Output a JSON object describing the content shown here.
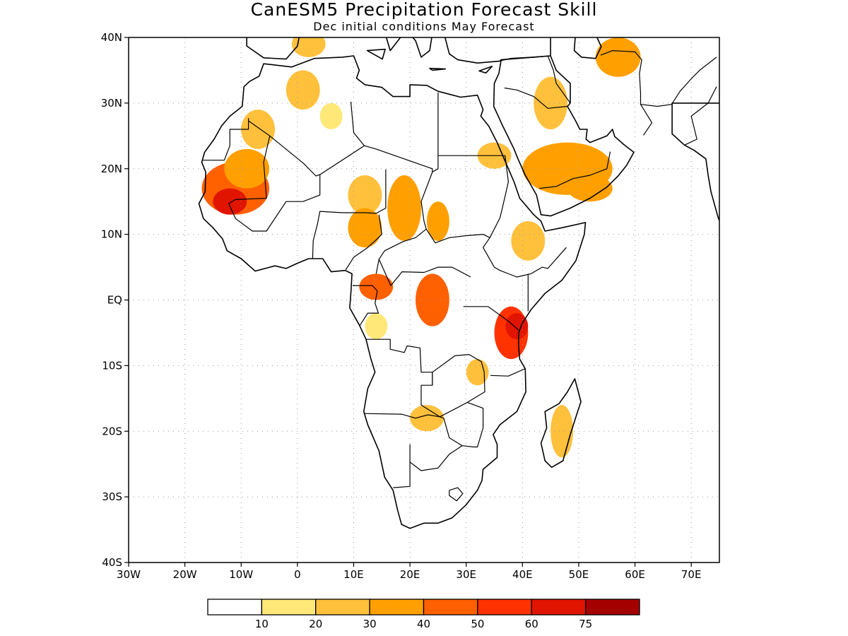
{
  "title": "CanESM5 Precipitation Forecast Skill",
  "subtitle": "Dec initial conditions  May Forecast",
  "map": {
    "lon_range": [
      -30,
      75
    ],
    "lat_range": [
      -40,
      40
    ],
    "lat_ticks": [
      {
        "value": 40,
        "label": "40N"
      },
      {
        "value": 30,
        "label": "30N"
      },
      {
        "value": 20,
        "label": "20N"
      },
      {
        "value": 10,
        "label": "10N"
      },
      {
        "value": 0,
        "label": "EQ"
      },
      {
        "value": -10,
        "label": "10S"
      },
      {
        "value": -20,
        "label": "20S"
      },
      {
        "value": -30,
        "label": "30S"
      },
      {
        "value": -40,
        "label": "40S"
      }
    ],
    "lon_ticks": [
      {
        "value": -30,
        "label": "30W"
      },
      {
        "value": -20,
        "label": "20W"
      },
      {
        "value": -10,
        "label": "10W"
      },
      {
        "value": 0,
        "label": "0"
      },
      {
        "value": 10,
        "label": "10E"
      },
      {
        "value": 20,
        "label": "20E"
      },
      {
        "value": 30,
        "label": "30E"
      },
      {
        "value": 40,
        "label": "40E"
      },
      {
        "value": 50,
        "label": "50E"
      },
      {
        "value": 60,
        "label": "60E"
      },
      {
        "value": 70,
        "label": "70E"
      }
    ],
    "grid": true,
    "skill_areas": [
      {
        "lon": -11,
        "lat": 17,
        "level": 4,
        "rx": 6,
        "ry": 4
      },
      {
        "lon": -12,
        "lat": 15,
        "level": 6,
        "rx": 3,
        "ry": 2
      },
      {
        "lon": -9,
        "lat": 20,
        "level": 3,
        "rx": 4,
        "ry": 3
      },
      {
        "lon": -7,
        "lat": 26,
        "level": 2,
        "rx": 3,
        "ry": 3
      },
      {
        "lon": 1,
        "lat": 32,
        "level": 2,
        "rx": 3,
        "ry": 3
      },
      {
        "lon": 6,
        "lat": 28,
        "level": 1,
        "rx": 2,
        "ry": 2
      },
      {
        "lon": 12,
        "lat": 16,
        "level": 2,
        "rx": 3,
        "ry": 3
      },
      {
        "lon": 19,
        "lat": 14,
        "level": 3,
        "rx": 3,
        "ry": 5
      },
      {
        "lon": 12,
        "lat": 11,
        "level": 3,
        "rx": 3,
        "ry": 3
      },
      {
        "lon": 25,
        "lat": 12,
        "level": 3,
        "rx": 2,
        "ry": 3
      },
      {
        "lon": 14,
        "lat": 2,
        "level": 4,
        "rx": 3,
        "ry": 2
      },
      {
        "lon": 24,
        "lat": 0,
        "level": 4,
        "rx": 3,
        "ry": 4
      },
      {
        "lon": 38,
        "lat": -5,
        "level": 5,
        "rx": 3,
        "ry": 4
      },
      {
        "lon": 39,
        "lat": -4,
        "level": 6,
        "rx": 2,
        "ry": 2
      },
      {
        "lon": 41,
        "lat": 9,
        "level": 2,
        "rx": 3,
        "ry": 3
      },
      {
        "lon": 48,
        "lat": 20,
        "level": 3,
        "rx": 8,
        "ry": 4
      },
      {
        "lon": 52,
        "lat": 17,
        "level": 3,
        "rx": 4,
        "ry": 2
      },
      {
        "lon": 45,
        "lat": 30,
        "level": 2,
        "rx": 3,
        "ry": 4
      },
      {
        "lon": 57,
        "lat": 37,
        "level": 3,
        "rx": 4,
        "ry": 3
      },
      {
        "lon": 2,
        "lat": 39,
        "level": 2,
        "rx": 3,
        "ry": 2
      },
      {
        "lon": 35,
        "lat": 22,
        "level": 2,
        "rx": 3,
        "ry": 2
      },
      {
        "lon": 47,
        "lat": -20,
        "level": 2,
        "rx": 2,
        "ry": 4
      },
      {
        "lon": 23,
        "lat": -18,
        "level": 2,
        "rx": 3,
        "ry": 2
      },
      {
        "lon": 32,
        "lat": -11,
        "level": 2,
        "rx": 2,
        "ry": 2
      },
      {
        "lon": 14,
        "lat": -4,
        "level": 1,
        "rx": 2,
        "ry": 2
      }
    ]
  },
  "colorbar": {
    "colors": [
      "#ffffff",
      "#ffe878",
      "#ffc03c",
      "#ffa000",
      "#ff6000",
      "#ff3200",
      "#e11400",
      "#a50000"
    ],
    "labels": [
      "10",
      "20",
      "30",
      "40",
      "50",
      "60",
      "75"
    ]
  }
}
